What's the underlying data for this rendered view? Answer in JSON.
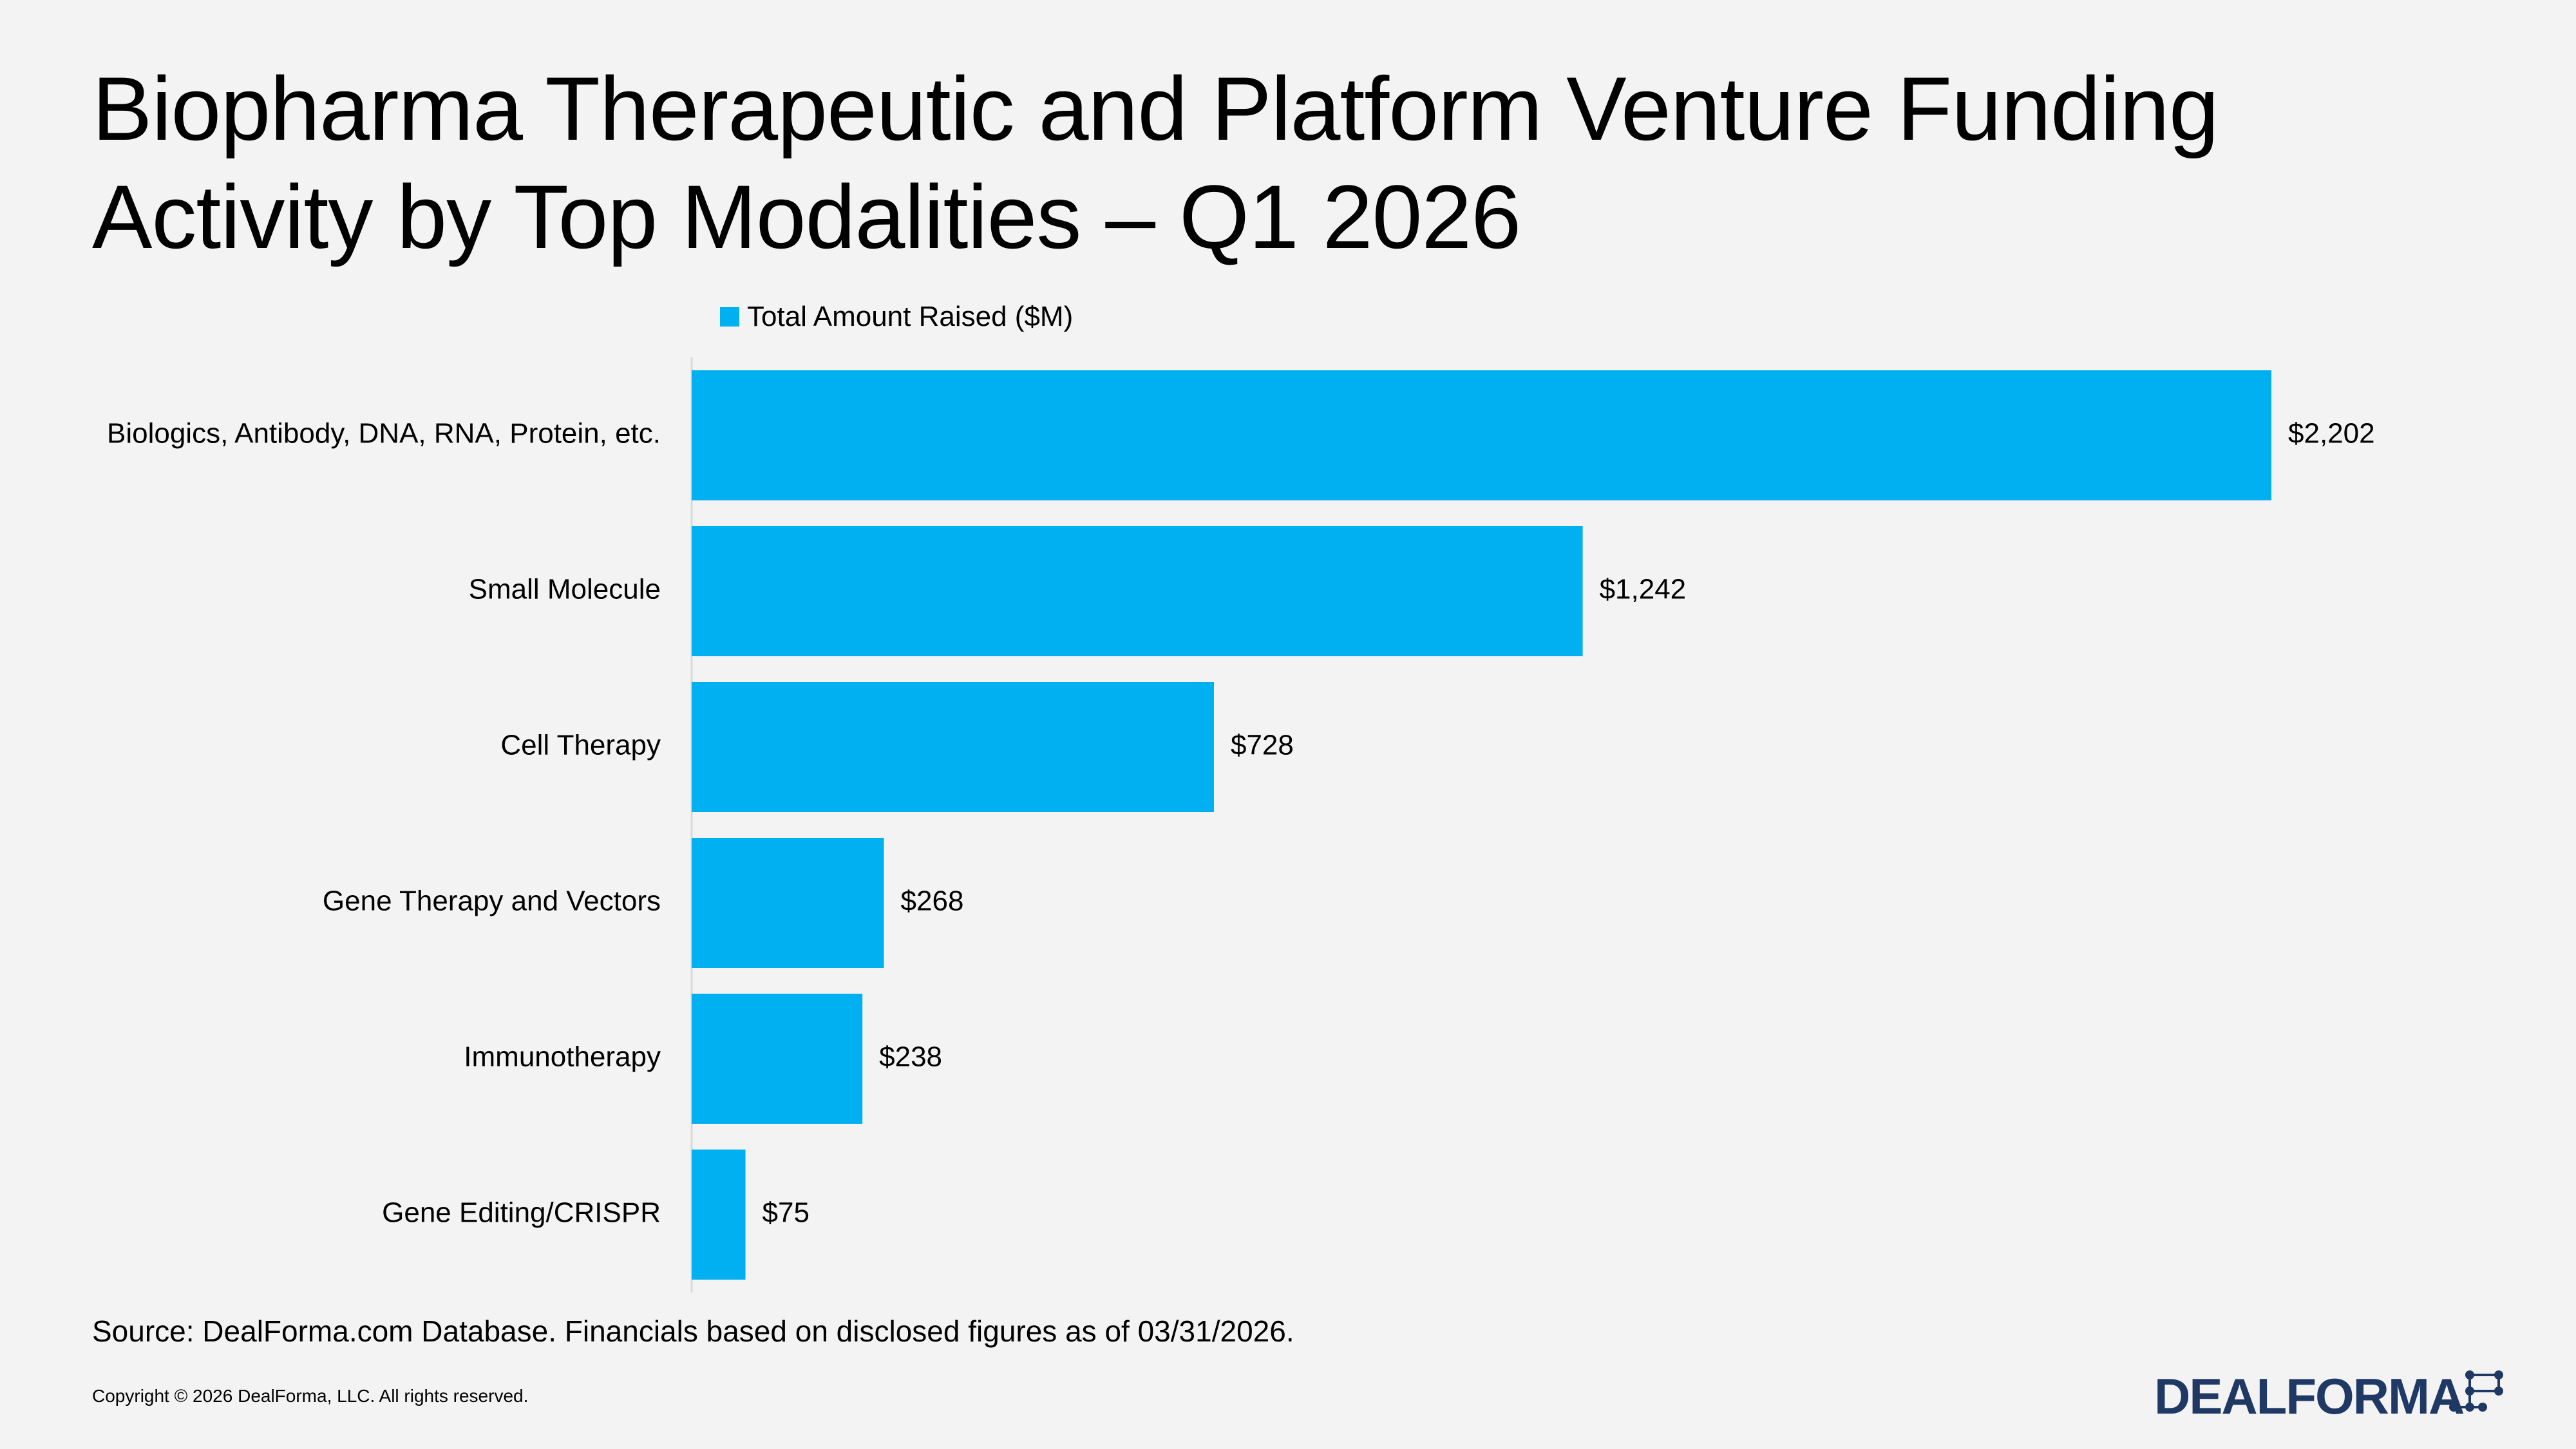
{
  "title": "Biopharma Therapeutic and Platform Venture Funding Activity by Top Modalities – Q1 2026",
  "legend_label": "Total Amount Raised ($M)",
  "source": "Source: DealForma.com Database. Financials based on disclosed figures as of 03/31/2026.",
  "copyright": "Copyright © 2026 DealForma, LLC. All rights reserved.",
  "logo_text": "DEALFORMA",
  "colors": {
    "bar": "#00b0f0",
    "axis": "#d9d9d9",
    "logo": "#1f3864"
  },
  "chart_data": {
    "type": "bar",
    "orientation": "horizontal",
    "categories": [
      "Biologics, Antibody, DNA, RNA, Protein, etc.",
      "Small Molecule",
      "Cell Therapy",
      "Gene Therapy and Vectors",
      "Immunotherapy",
      "Gene Editing/CRISPR"
    ],
    "series": [
      {
        "name": "Total Amount Raised ($M)",
        "values": [
          2202,
          1242,
          728,
          268,
          238,
          75
        ],
        "labels": [
          "$2,202",
          "$1,242",
          "$728",
          "$268",
          "$238",
          "$75"
        ]
      }
    ],
    "xlim": [
      0,
      2400
    ],
    "grid": false,
    "legend_position": "top"
  }
}
